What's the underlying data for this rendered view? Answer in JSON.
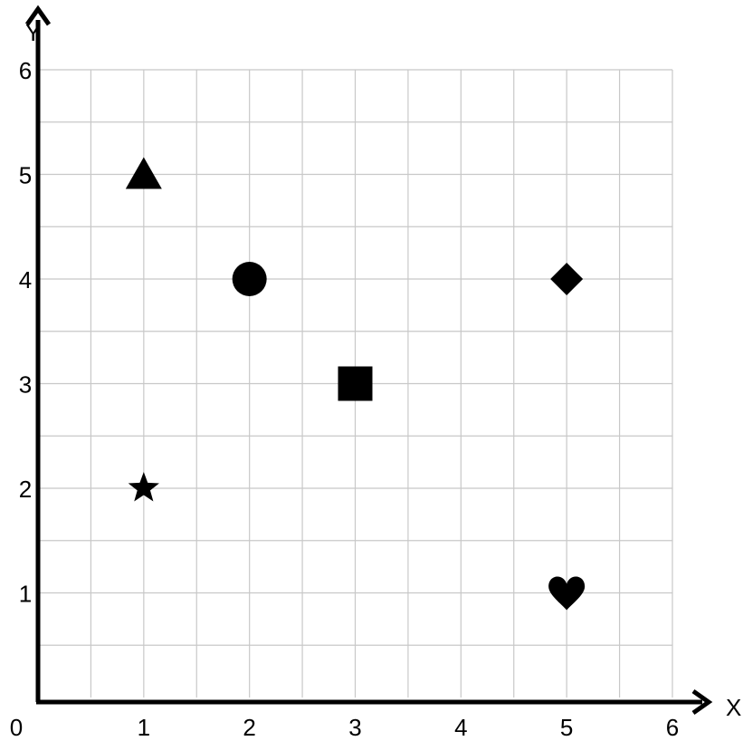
{
  "chart_data": {
    "type": "scatter",
    "title": "",
    "xlabel": "X",
    "ylabel": "Y",
    "xlim": [
      0,
      6
    ],
    "ylim": [
      0,
      6
    ],
    "x_ticks": [
      "0",
      "1",
      "2",
      "3",
      "4",
      "5",
      "6"
    ],
    "y_ticks": [
      "1",
      "2",
      "3",
      "4",
      "5",
      "6"
    ],
    "grid": true,
    "grid_step": 0.5,
    "points": [
      {
        "shape": "triangle",
        "x": 1,
        "y": 5
      },
      {
        "shape": "circle",
        "x": 2,
        "y": 4
      },
      {
        "shape": "diamond",
        "x": 5,
        "y": 4
      },
      {
        "shape": "square",
        "x": 3,
        "y": 3
      },
      {
        "shape": "star",
        "x": 1,
        "y": 2
      },
      {
        "shape": "heart",
        "x": 5,
        "y": 1
      }
    ],
    "marker_color": "#000000",
    "grid_color": "#c8c8c8"
  }
}
